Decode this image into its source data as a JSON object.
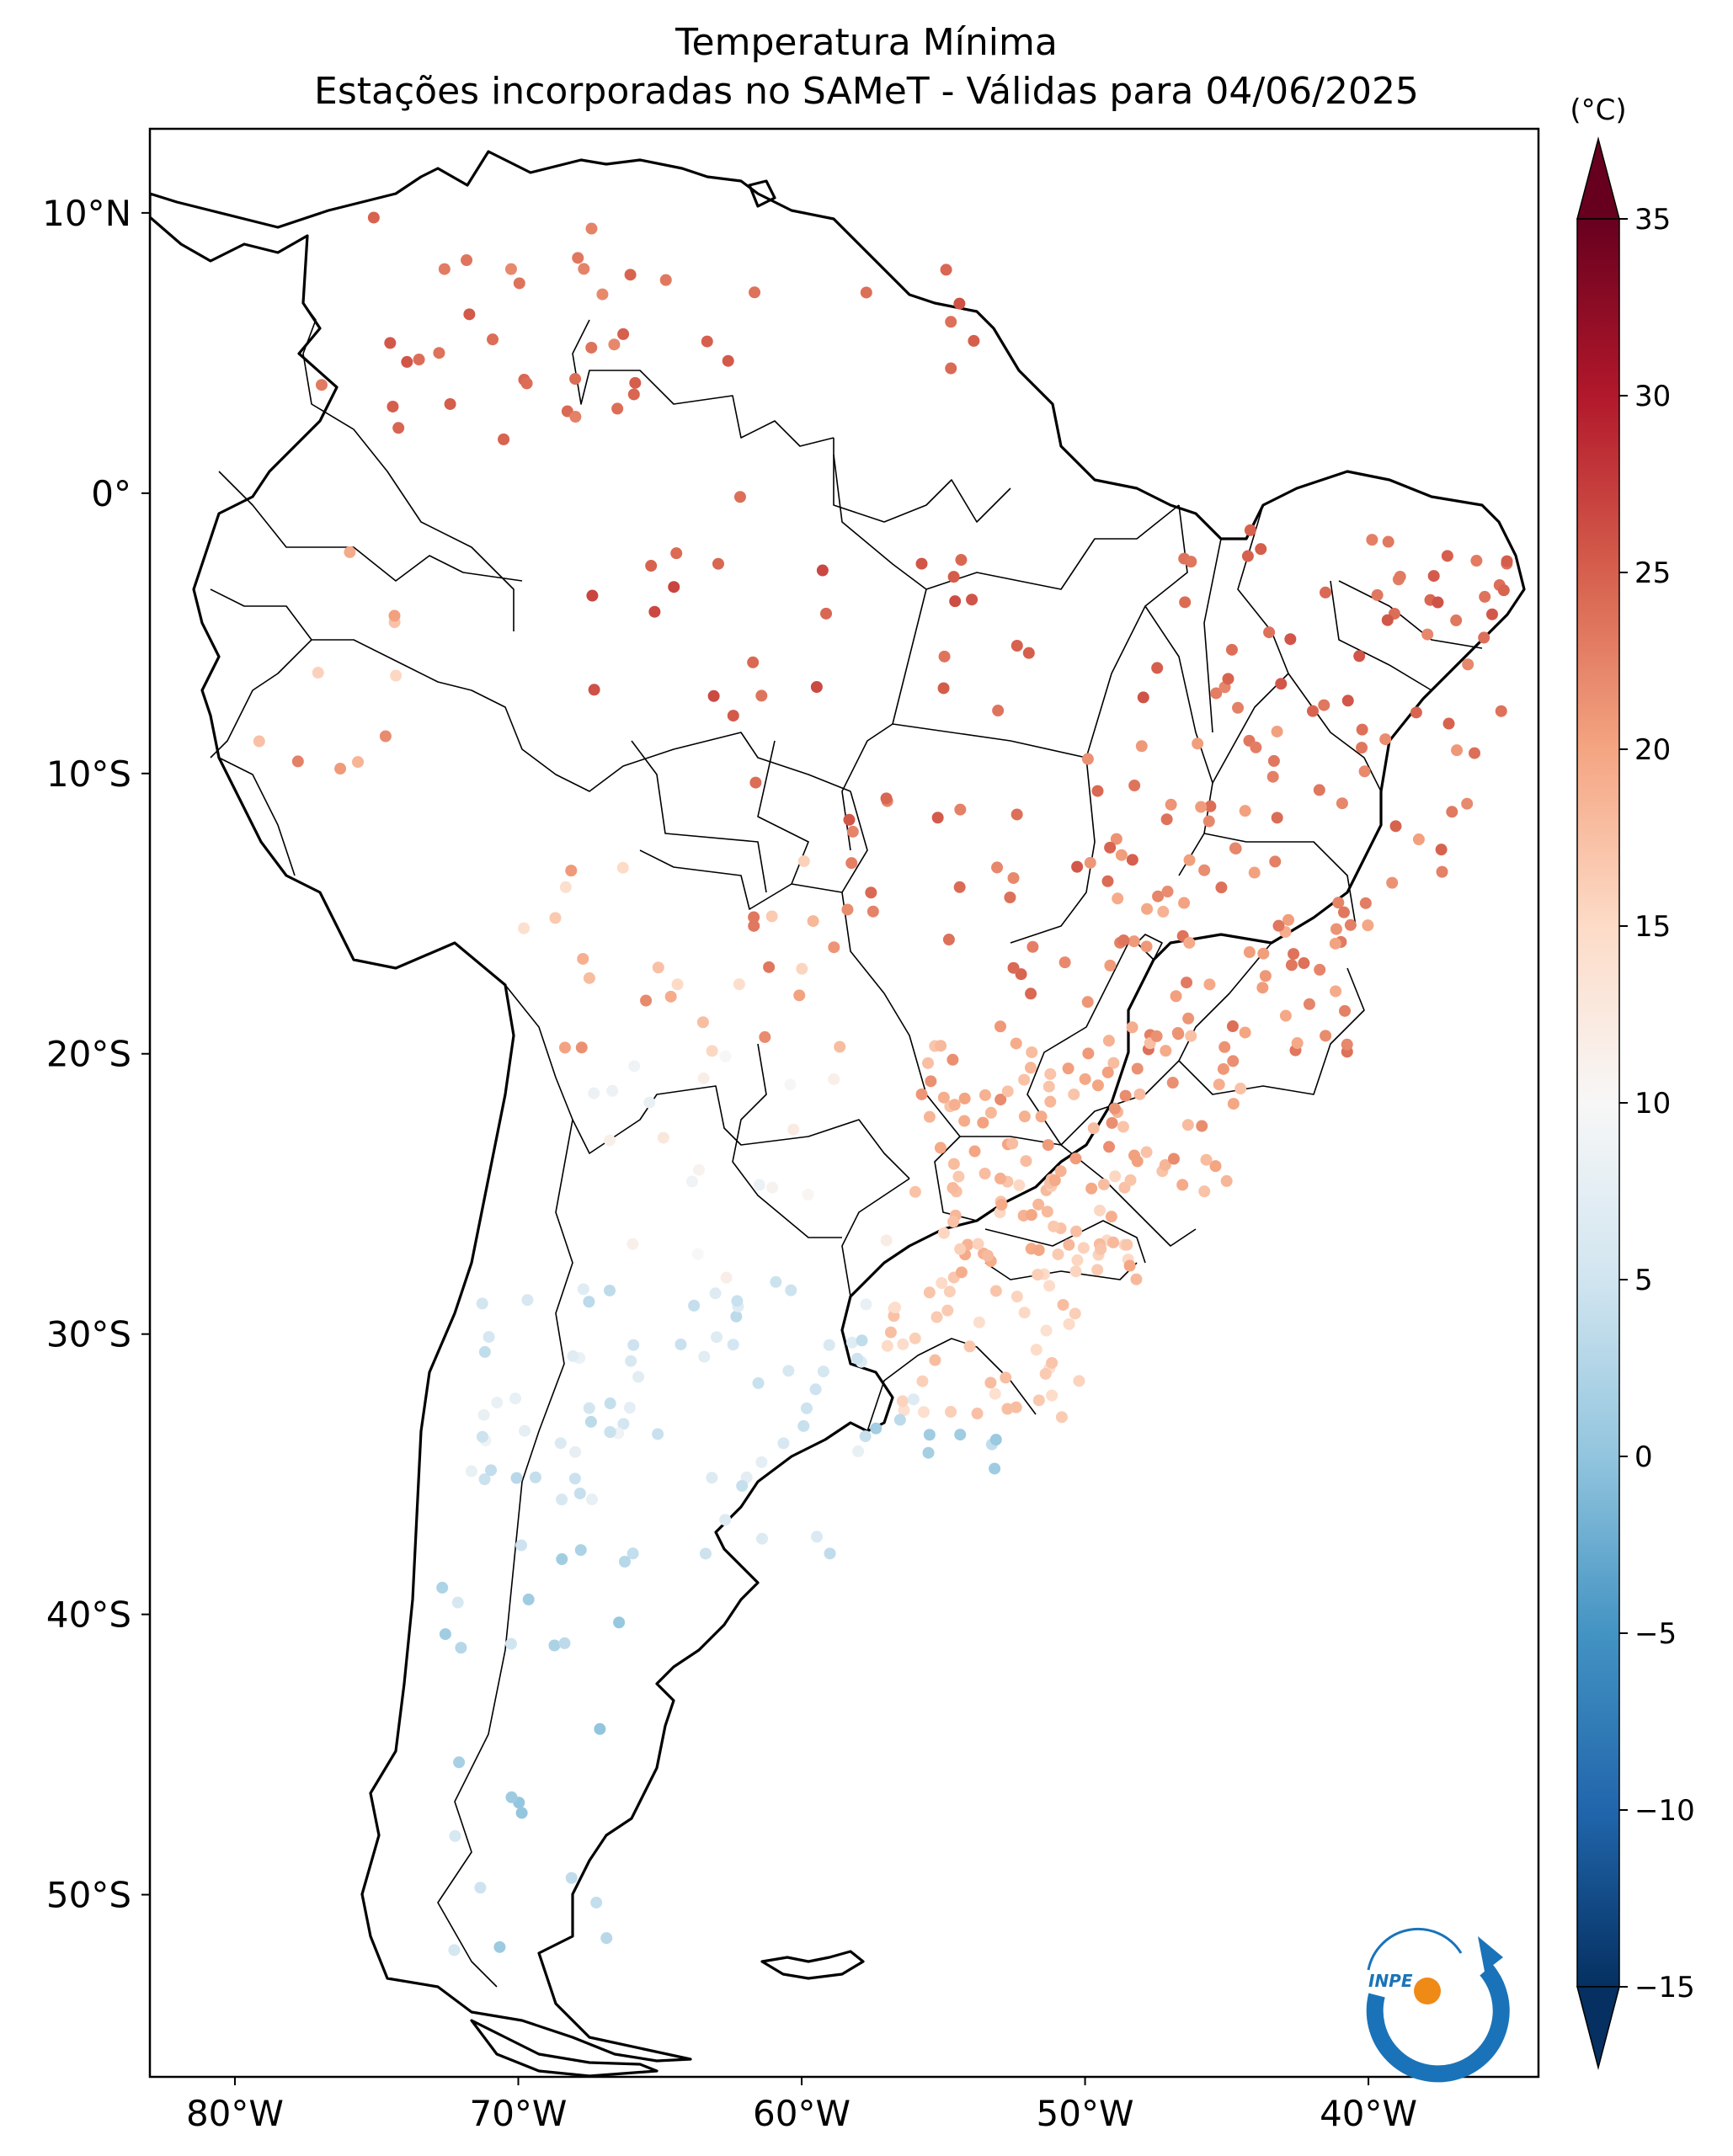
{
  "title": {
    "line1": "Temperatura Mínima",
    "line2": "Estações incorporadas no SAMeT - Válidas para 04/06/2025"
  },
  "map": {
    "lon_range": [
      -83,
      -34
    ],
    "lat_range": [
      -56.5,
      13
    ],
    "lon_ticks": [
      {
        "value": -80,
        "label": "80°W"
      },
      {
        "value": -70,
        "label": "70°W"
      },
      {
        "value": -60,
        "label": "60°W"
      },
      {
        "value": -50,
        "label": "50°W"
      },
      {
        "value": -40,
        "label": "40°W"
      }
    ],
    "lat_ticks": [
      {
        "value": 10,
        "label": "10°N"
      },
      {
        "value": 0,
        "label": "0°"
      },
      {
        "value": -10,
        "label": "10°S"
      },
      {
        "value": -20,
        "label": "20°S"
      },
      {
        "value": -30,
        "label": "30°S"
      },
      {
        "value": -40,
        "label": "40°S"
      },
      {
        "value": -50,
        "label": "50°S"
      }
    ]
  },
  "colorbar": {
    "unit": "(°C)",
    "range": [
      -15,
      35
    ],
    "colormap": "RdBu_r",
    "ticks": [
      {
        "value": 35,
        "label": "35"
      },
      {
        "value": 30,
        "label": "30"
      },
      {
        "value": 25,
        "label": "25"
      },
      {
        "value": 20,
        "label": "20"
      },
      {
        "value": 15,
        "label": "15"
      },
      {
        "value": 10,
        "label": "10"
      },
      {
        "value": 5,
        "label": "5"
      },
      {
        "value": 0,
        "label": "0"
      },
      {
        "value": -5,
        "label": "−5"
      },
      {
        "value": -10,
        "label": "−10"
      },
      {
        "value": -15,
        "label": "−15"
      }
    ]
  },
  "logo": {
    "text": "INPE"
  },
  "colors": {
    "ocean": "#ffffff",
    "land": "#ffffff",
    "coastline": "#000000",
    "logo_blue": "#1a73b8",
    "logo_orange": "#ef8a17"
  }
}
